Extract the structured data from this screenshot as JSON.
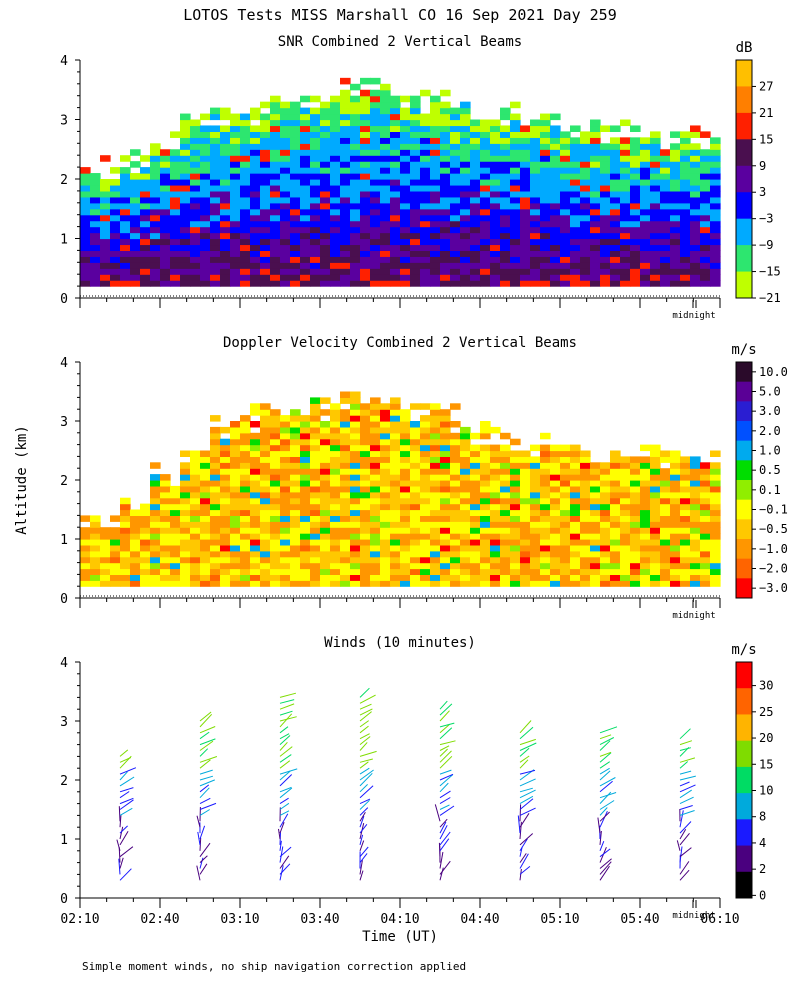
{
  "title": "LOTOS Tests MISS Marshall CO  16 Sep 2021 Day 259",
  "ylabel": "Altitude (km)",
  "xlabel": "Time (UT)",
  "footnote": "Simple moment winds, no ship navigation correction applied",
  "midnight_label": "midnight",
  "chart_data": [
    {
      "type": "heatmap",
      "title": "SNR Combined 2 Vertical Beams",
      "colorbar_unit": "dB",
      "colorbar_labels": [
        "27",
        "21",
        "15",
        "9",
        "3",
        "−3",
        "−9",
        "−15",
        "−21"
      ],
      "colorbar_colors": [
        "#ffbf00",
        "#ff7f00",
        "#ff2000",
        "#4a0f4f",
        "#5a009f",
        "#0000ff",
        "#00aaff",
        "#2de66f",
        "#bfff00"
      ],
      "ylim": [
        0,
        4
      ],
      "yticks": [
        "0",
        "1",
        "2",
        "3",
        "4"
      ],
      "xlim": [
        "02:10",
        "06:10"
      ],
      "echo_top_km": [
        2.1,
        2.3,
        2.6,
        2.9,
        3.0,
        3.1,
        3.2,
        3.3,
        3.4,
        3.5,
        3.3,
        3.2,
        3.1,
        3.0,
        2.9,
        2.8,
        2.7,
        2.7,
        2.6,
        2.6
      ],
      "description_bottom_km": 0.2
    },
    {
      "type": "heatmap",
      "title": "Doppler Velocity Combined 2 Vertical Beams",
      "colorbar_unit": "m/s",
      "colorbar_labels": [
        "10.0",
        "5.0",
        "3.0",
        "2.0",
        "1.0",
        "0.5",
        "0.1",
        "−0.1",
        "−0.5",
        "−1.0",
        "−2.0",
        "−3.0"
      ],
      "colorbar_colors": [
        "#2a0a2a",
        "#5a0096",
        "#2a1ed2",
        "#0050ff",
        "#00aaee",
        "#00dd00",
        "#90ee00",
        "#ffff00",
        "#ffc800",
        "#ff9600",
        "#ff6400",
        "#ff0000"
      ],
      "ylim": [
        0,
        4
      ],
      "yticks": [
        "0",
        "1",
        "2",
        "3",
        "4"
      ],
      "xlim": [
        "02:10",
        "06:10"
      ],
      "echo_top_km": [
        1.3,
        1.6,
        2.0,
        2.4,
        2.8,
        3.0,
        3.1,
        3.2,
        3.3,
        3.4,
        3.2,
        3.0,
        2.7,
        2.6,
        2.5,
        2.5,
        2.4,
        2.4,
        2.3,
        2.3
      ],
      "description_bottom_km": 0.2
    },
    {
      "type": "scatter",
      "title": "Winds (10 minutes)",
      "colorbar_unit": "m/s",
      "colorbar_labels": [
        "30",
        "25",
        "20",
        "15",
        "10",
        "8",
        "4",
        "2",
        "0"
      ],
      "colorbar_colors": [
        "#ff0000",
        "#ff6400",
        "#ffb400",
        "#7fdc00",
        "#00dc64",
        "#00aadc",
        "#1a1aff",
        "#4a007f",
        "#000000"
      ],
      "ylim": [
        0,
        4
      ],
      "yticks": [
        "0",
        "1",
        "2",
        "3",
        "4"
      ],
      "xticks": [
        "02:10",
        "02:40",
        "03:10",
        "03:40",
        "04:10",
        "04:40",
        "05:10",
        "05:40",
        "06:10"
      ],
      "profiles": [
        {
          "time": "02:25",
          "top_km": 2.5
        },
        {
          "time": "02:55",
          "top_km": 3.1
        },
        {
          "time": "03:25",
          "top_km": 3.5
        },
        {
          "time": "03:55",
          "top_km": 3.5
        },
        {
          "time": "04:25",
          "top_km": 3.3
        },
        {
          "time": "04:55",
          "top_km": 2.9
        },
        {
          "time": "05:25",
          "top_km": 2.9
        },
        {
          "time": "05:55",
          "top_km": 2.8
        }
      ]
    }
  ]
}
